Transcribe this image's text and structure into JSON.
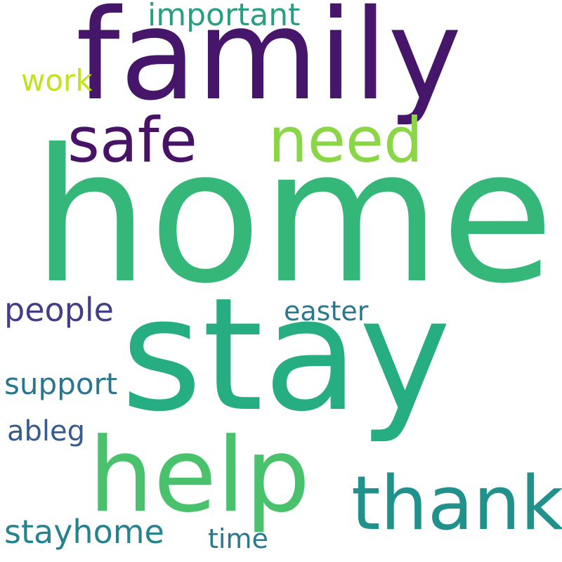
{
  "words": [
    {
      "key": "home",
      "text": "home",
      "color": "#35b779"
    },
    {
      "key": "stay",
      "text": "stay",
      "color": "#26ad81"
    },
    {
      "key": "family",
      "text": "family",
      "color": "#46166b"
    },
    {
      "key": "help",
      "text": "help",
      "color": "#4ac16d"
    },
    {
      "key": "thank",
      "text": "thank",
      "color": "#21918c"
    },
    {
      "key": "safe",
      "text": "safe",
      "color": "#471365"
    },
    {
      "key": "need",
      "text": "need",
      "color": "#8bd646"
    },
    {
      "key": "important",
      "text": "important",
      "color": "#27a081"
    },
    {
      "key": "work",
      "text": "work",
      "color": "#c5e021"
    },
    {
      "key": "people",
      "text": "people",
      "color": "#433e85"
    },
    {
      "key": "easter",
      "text": "easter",
      "color": "#2a788e"
    },
    {
      "key": "support",
      "text": "support",
      "color": "#2b758e"
    },
    {
      "key": "ableg",
      "text": "ableg",
      "color": "#375b8d"
    },
    {
      "key": "stayhome",
      "text": "stayhome",
      "color": "#26828e"
    },
    {
      "key": "time",
      "text": "time",
      "color": "#2a788e"
    }
  ]
}
